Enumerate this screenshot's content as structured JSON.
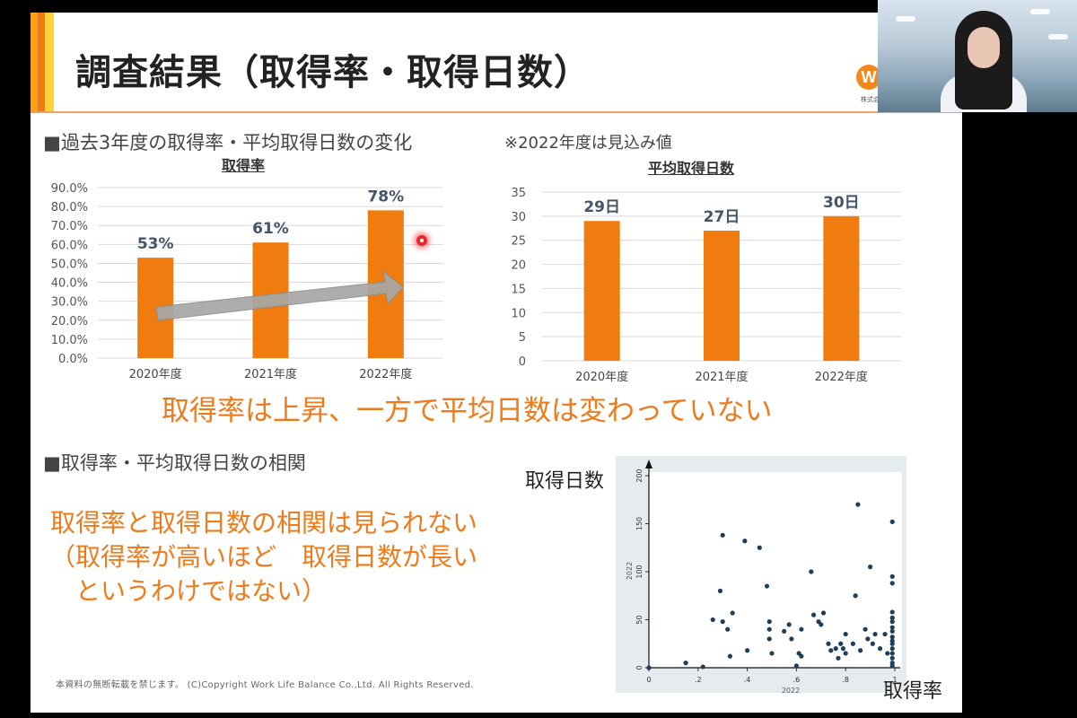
{
  "slide": {
    "title": "調査結果（取得率・取得日数）",
    "logo_letter": "W",
    "logo_subtext": "株式会社",
    "section1_heading": "■過去3年度の取得率・平均取得日数の変化",
    "section1_note": "※2022年度は見込み値",
    "section2_heading": "■取得率・平均取得日数の相関",
    "conclusion": "取得率は上昇、一方で平均日数は変わっていない",
    "findings": [
      "取得率と取得日数の相関は見られない",
      "（取得率が高いほど　取得日数が長い",
      "　というわけではない）"
    ],
    "scatter_y_label": "取得日数",
    "scatter_x_label": "取得率",
    "copyright": "本資料の無断転載を禁じます。 (C)Copyright  Work Life Balance Co.,Ltd. All Rights Reserved."
  },
  "colors": {
    "bar": "#f07c0f",
    "accent": "#ee7a1a",
    "scatter_point": "#1f3e5a",
    "arrow": "#a7a7a7"
  },
  "chart_data": [
    {
      "type": "bar",
      "title": "取得率",
      "categories": [
        "2020年度",
        "2021年度",
        "2022年度"
      ],
      "values": [
        53,
        61,
        78
      ],
      "data_labels": [
        "53%",
        "61%",
        "78%"
      ],
      "y_ticks": [
        "0.0%",
        "10.0%",
        "20.0%",
        "30.0%",
        "40.0%",
        "50.0%",
        "60.0%",
        "70.0%",
        "80.0%",
        "90.0%"
      ],
      "ylim": [
        0,
        90
      ],
      "grid": true,
      "annotation": "upward trend arrow"
    },
    {
      "type": "bar",
      "title": "平均取得日数",
      "categories": [
        "2020年度",
        "2021年度",
        "2022年度"
      ],
      "values": [
        29,
        27,
        30
      ],
      "data_labels": [
        "29日",
        "27日",
        "30日"
      ],
      "y_ticks": [
        "0",
        "5",
        "10",
        "15",
        "20",
        "25",
        "30",
        "35"
      ],
      "ylim": [
        0,
        35
      ],
      "grid": true
    },
    {
      "type": "scatter",
      "xlabel": "取得率",
      "ylabel": "取得日数",
      "xlim": [
        0,
        1
      ],
      "ylim": [
        0,
        200
      ],
      "x_ticks": [
        "0",
        ".2",
        ".4",
        ".6",
        ".8",
        "1"
      ],
      "y_ticks": [
        "0",
        "50",
        "100",
        "150",
        "200"
      ],
      "x_axis_caption": "2022",
      "y_axis_caption": "2022",
      "points": [
        [
          0.0,
          0
        ],
        [
          0.15,
          5
        ],
        [
          0.22,
          1
        ],
        [
          0.26,
          50
        ],
        [
          0.29,
          80
        ],
        [
          0.3,
          138
        ],
        [
          0.3,
          48
        ],
        [
          0.32,
          40
        ],
        [
          0.33,
          12
        ],
        [
          0.34,
          57
        ],
        [
          0.39,
          132
        ],
        [
          0.4,
          18
        ],
        [
          0.45,
          125
        ],
        [
          0.48,
          85
        ],
        [
          0.49,
          48
        ],
        [
          0.49,
          40
        ],
        [
          0.49,
          30
        ],
        [
          0.5,
          15
        ],
        [
          0.55,
          38
        ],
        [
          0.57,
          45
        ],
        [
          0.58,
          30
        ],
        [
          0.6,
          2
        ],
        [
          0.61,
          15
        ],
        [
          0.62,
          12
        ],
        [
          0.62,
          40
        ],
        [
          0.66,
          100
        ],
        [
          0.67,
          55
        ],
        [
          0.69,
          48
        ],
        [
          0.7,
          45
        ],
        [
          0.71,
          57
        ],
        [
          0.73,
          25
        ],
        [
          0.74,
          18
        ],
        [
          0.76,
          20
        ],
        [
          0.77,
          10
        ],
        [
          0.78,
          25
        ],
        [
          0.79,
          20
        ],
        [
          0.8,
          35
        ],
        [
          0.8,
          15
        ],
        [
          0.83,
          25
        ],
        [
          0.84,
          75
        ],
        [
          0.85,
          170
        ],
        [
          0.86,
          18
        ],
        [
          0.88,
          40
        ],
        [
          0.89,
          30
        ],
        [
          0.9,
          105
        ],
        [
          0.91,
          25
        ],
        [
          0.92,
          35
        ],
        [
          0.94,
          20
        ],
        [
          0.96,
          35
        ],
        [
          0.97,
          15
        ],
        [
          0.99,
          152
        ],
        [
          0.99,
          95
        ],
        [
          0.99,
          88
        ],
        [
          0.99,
          58
        ],
        [
          0.99,
          52
        ],
        [
          0.99,
          48
        ],
        [
          0.99,
          42
        ],
        [
          0.99,
          38
        ],
        [
          0.99,
          32
        ],
        [
          0.99,
          28
        ],
        [
          0.99,
          25
        ],
        [
          0.99,
          20
        ],
        [
          0.99,
          15
        ],
        [
          0.99,
          10
        ],
        [
          0.99,
          5
        ],
        [
          0.99,
          2
        ]
      ]
    }
  ]
}
